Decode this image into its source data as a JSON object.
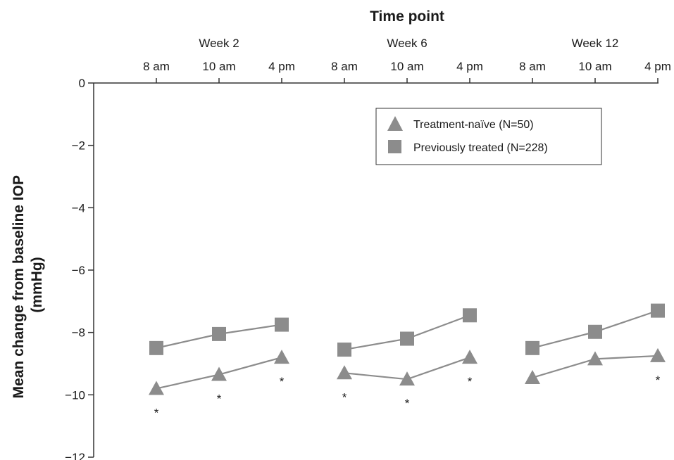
{
  "chart_data": {
    "type": "line",
    "title": "",
    "xlabel": "Time point",
    "ylabel": "Mean change from baseline IOP (mmHg)",
    "ylabel_lines": [
      "Mean change from baseline IOP",
      "(mmHg)"
    ],
    "ylim": [
      -12,
      0
    ],
    "yticks": [
      0,
      -2,
      -4,
      -6,
      -8,
      -10,
      -12
    ],
    "ytick_labels": [
      "0",
      "−2",
      "−4",
      "−6",
      "−8",
      "−10",
      "−12"
    ],
    "x_groups": [
      {
        "label": "Week 2",
        "times": [
          "8 am",
          "10 am",
          "4 pm"
        ]
      },
      {
        "label": "Week 6",
        "times": [
          "8 am",
          "10 am",
          "4 pm"
        ]
      },
      {
        "label": "Week 12",
        "times": [
          "8 am",
          "10 am",
          "4 pm"
        ]
      }
    ],
    "grid": false,
    "legend_position": "top-right",
    "series": [
      {
        "name": "Treatment-naïve (N=50)",
        "marker": "triangle",
        "color": "#8c8c8c",
        "values": [
          [
            -9.8,
            -9.35,
            -8.8
          ],
          [
            -9.3,
            -9.5,
            -8.8
          ],
          [
            -9.45,
            -8.85,
            -8.75
          ]
        ]
      },
      {
        "name": "Previously treated (N=228)",
        "marker": "square",
        "color": "#8c8c8c",
        "values": [
          [
            -8.5,
            -8.05,
            -7.75
          ],
          [
            -8.55,
            -8.2,
            -7.45
          ],
          [
            -8.5,
            -7.98,
            -7.3
          ]
        ]
      }
    ],
    "annotations": [
      {
        "text": "*",
        "group": 0,
        "time": 0,
        "position": "below"
      },
      {
        "text": "*",
        "group": 0,
        "time": 1,
        "position": "below"
      },
      {
        "text": "*",
        "group": 0,
        "time": 2,
        "position": "below"
      },
      {
        "text": "*",
        "group": 1,
        "time": 0,
        "position": "below"
      },
      {
        "text": "*",
        "group": 1,
        "time": 1,
        "position": "below"
      },
      {
        "text": "*",
        "group": 1,
        "time": 2,
        "position": "below"
      },
      {
        "text": "*",
        "group": 2,
        "time": 2,
        "position": "below"
      }
    ]
  }
}
